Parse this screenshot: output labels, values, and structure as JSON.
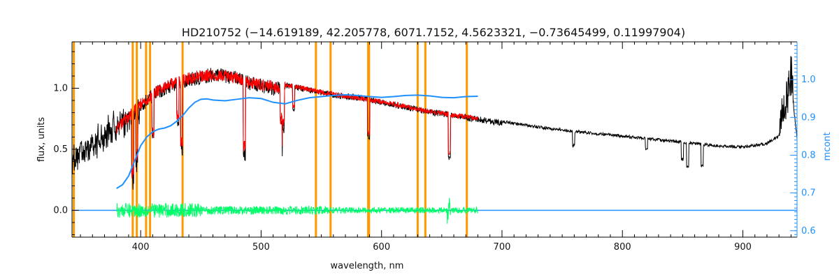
{
  "chart_data": {
    "type": "line",
    "title": "HD210752   (−14.619189, 42.205778, 6071.7152, 4.5623321, −0.73645499, 0.11997904)",
    "xlabel": "wavelength, nm",
    "ylabel": "flux, units",
    "y2label": "mcont",
    "xlim": [
      343,
      945
    ],
    "ylim": [
      -0.22,
      1.38
    ],
    "y2lim": [
      0.583,
      1.1
    ],
    "x_ticks": [
      400,
      500,
      600,
      700,
      800,
      900
    ],
    "y_ticks": [
      0.0,
      0.5,
      1.0
    ],
    "y2_ticks": [
      0.6,
      0.7,
      0.8,
      0.9,
      1.0
    ],
    "colors": {
      "observed": "#000000",
      "model": "#ff0000",
      "residual": "#00ff66",
      "mcont": "#1e90ff",
      "masks": "#ff9900"
    },
    "masked_lines_nm": [
      344.5,
      393.4,
      396.8,
      404.5,
      407.8,
      434.8,
      545.5,
      557.7,
      588.9,
      589.6,
      630.0,
      636.4,
      670.8
    ],
    "series": [
      {
        "key": "observed",
        "x": [
          343,
          350,
          360,
          370,
          380,
          390,
          400,
          410,
          420,
          430,
          440,
          450,
          460,
          470,
          480,
          490,
          500,
          510,
          520,
          530,
          540,
          550,
          560,
          570,
          580,
          590,
          600,
          620,
          640,
          660,
          680,
          700,
          720,
          740,
          760,
          780,
          800,
          820,
          840,
          860,
          880,
          900,
          920,
          930,
          935,
          940,
          945
        ],
        "y": [
          0.5,
          0.55,
          0.6,
          0.67,
          0.75,
          0.82,
          0.92,
          1.0,
          1.06,
          1.1,
          1.13,
          1.15,
          1.17,
          1.16,
          1.14,
          1.1,
          1.08,
          1.06,
          1.05,
          1.03,
          1.01,
          0.99,
          0.97,
          0.96,
          0.95,
          0.93,
          0.91,
          0.87,
          0.83,
          0.8,
          0.77,
          0.74,
          0.71,
          0.68,
          0.66,
          0.64,
          0.62,
          0.6,
          0.58,
          0.56,
          0.54,
          0.53,
          0.56,
          0.62,
          0.8,
          1.05,
          0.6
        ]
      },
      {
        "key": "model",
        "x": [
          380,
          390,
          400,
          410,
          420,
          430,
          440,
          450,
          460,
          470,
          480,
          490,
          500,
          520,
          540,
          560,
          580,
          600,
          620,
          640,
          660,
          680
        ],
        "y": [
          0.72,
          0.82,
          0.92,
          1.0,
          1.06,
          1.1,
          1.13,
          1.15,
          1.16,
          1.15,
          1.13,
          1.1,
          1.08,
          1.05,
          1.01,
          0.97,
          0.94,
          0.91,
          0.87,
          0.83,
          0.8,
          0.77
        ]
      },
      {
        "key": "residual",
        "x": [
          380,
          680
        ],
        "y": [
          0.0,
          0.0
        ]
      },
      {
        "key": "mcont",
        "axis": "right",
        "x": [
          380,
          385,
          390,
          395,
          400,
          405,
          410,
          415,
          420,
          425,
          430,
          435,
          440,
          445,
          450,
          455,
          460,
          470,
          480,
          490,
          500,
          510,
          520,
          530,
          540,
          550,
          560,
          570,
          580,
          590,
          600,
          610,
          620,
          630,
          640,
          650,
          660,
          670,
          680
        ],
        "y": [
          0.712,
          0.722,
          0.745,
          0.785,
          0.825,
          0.848,
          0.862,
          0.869,
          0.872,
          0.878,
          0.89,
          0.905,
          0.925,
          0.94,
          0.948,
          0.949,
          0.946,
          0.944,
          0.948,
          0.952,
          0.95,
          0.94,
          0.936,
          0.945,
          0.952,
          0.955,
          0.958,
          0.96,
          0.958,
          0.955,
          0.953,
          0.955,
          0.958,
          0.959,
          0.957,
          0.953,
          0.952,
          0.955,
          0.956
        ]
      }
    ]
  }
}
